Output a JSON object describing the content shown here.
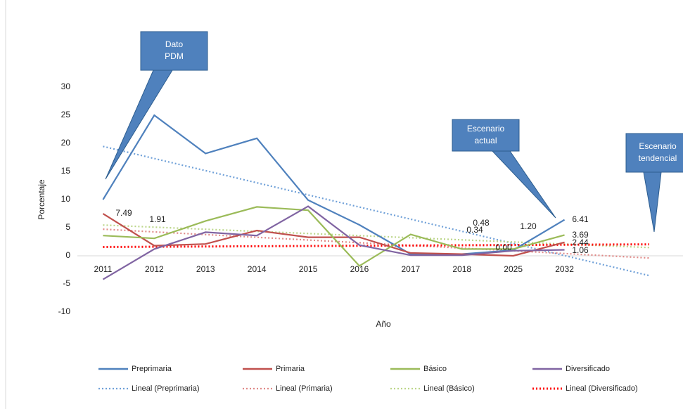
{
  "chart_data": {
    "type": "line",
    "y_label": "Porcentaje",
    "x_label": "Año",
    "categories": [
      "2011",
      "2012",
      "2013",
      "2014",
      "2015",
      "2016",
      "2017",
      "2018",
      "2025",
      "2032"
    ],
    "series": [
      {
        "name": "Preprimaria",
        "color": "#4f81bd",
        "trendline_name": "Lineal (Preprimaria)",
        "trendline_color": "#6fa0d8",
        "values": [
          10,
          25,
          18.2,
          20.9,
          9.9,
          5.5,
          0.3,
          0.3,
          1.0,
          6.41
        ]
      },
      {
        "name": "Primaria",
        "color": "#c0504d",
        "trendline_name": "Lineal (Primaria)",
        "trendline_color": "#e08a88",
        "values": [
          7.49,
          1.8,
          2.1,
          4.5,
          3.3,
          3.3,
          0.5,
          0.3,
          0,
          2.4
        ]
      },
      {
        "name": "Básico",
        "color": "#9bbb59",
        "trendline_name": "Lineal (Básico)",
        "trendline_color": "#bcd68a",
        "values": [
          3.6,
          3.1,
          6.2,
          8.7,
          8.1,
          -1.8,
          3.8,
          1.2,
          1.2,
          3.69
        ]
      },
      {
        "name": "Diversificado",
        "color": "#8064a2",
        "trendline_name": "Lineal (Diversificado)",
        "trendline_color": "#ff0000",
        "values": [
          -4.2,
          1.2,
          4.2,
          3.6,
          8.8,
          1.9,
          0.1,
          0.1,
          0.9,
          1.06
        ]
      }
    ],
    "trendline_forward": 2,
    "ylim": [
      -10,
      30
    ],
    "yticks": [
      -10,
      -5,
      0,
      5,
      10,
      15,
      20,
      25,
      30
    ],
    "grid": false,
    "legend": "bottom",
    "data_labels": [
      "7.49",
      "1.91",
      "0.48",
      "0.34",
      "1.20",
      "0.00",
      "6.41",
      "3.69",
      "2.44",
      "1.06"
    ],
    "callouts": [
      "Dato PDM",
      "Escenario actual",
      "Escenario tendencial"
    ]
  }
}
